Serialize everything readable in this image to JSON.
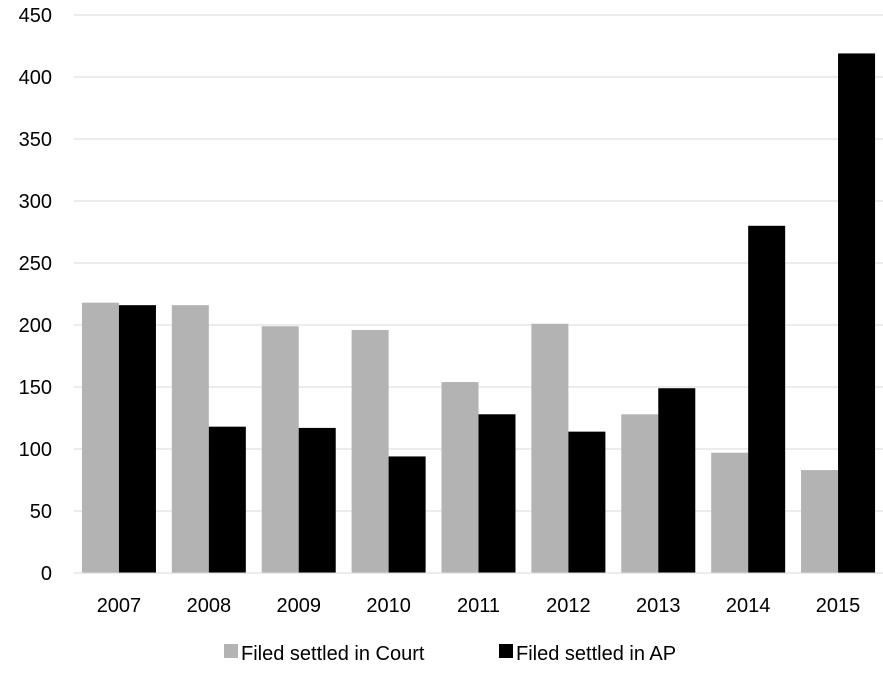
{
  "chart_data": {
    "type": "bar",
    "title": "",
    "xlabel": "",
    "ylabel": "",
    "categories": [
      "2007",
      "2008",
      "2009",
      "2010",
      "2011",
      "2012",
      "2013",
      "2014",
      "2015"
    ],
    "series": [
      {
        "name": "Filed settled in Court",
        "color": "#b3b3b3",
        "values": [
          218,
          216,
          199,
          196,
          154,
          201,
          128,
          97,
          83
        ]
      },
      {
        "name": "Filed settled in AP",
        "color": "#000000",
        "values": [
          216,
          118,
          117,
          94,
          128,
          114,
          149,
          280,
          419
        ]
      }
    ],
    "ylim": [
      0,
      450
    ],
    "yticks": [
      0,
      50,
      100,
      150,
      200,
      250,
      300,
      350,
      400,
      450
    ],
    "grid": true,
    "legend_position": "bottom"
  }
}
